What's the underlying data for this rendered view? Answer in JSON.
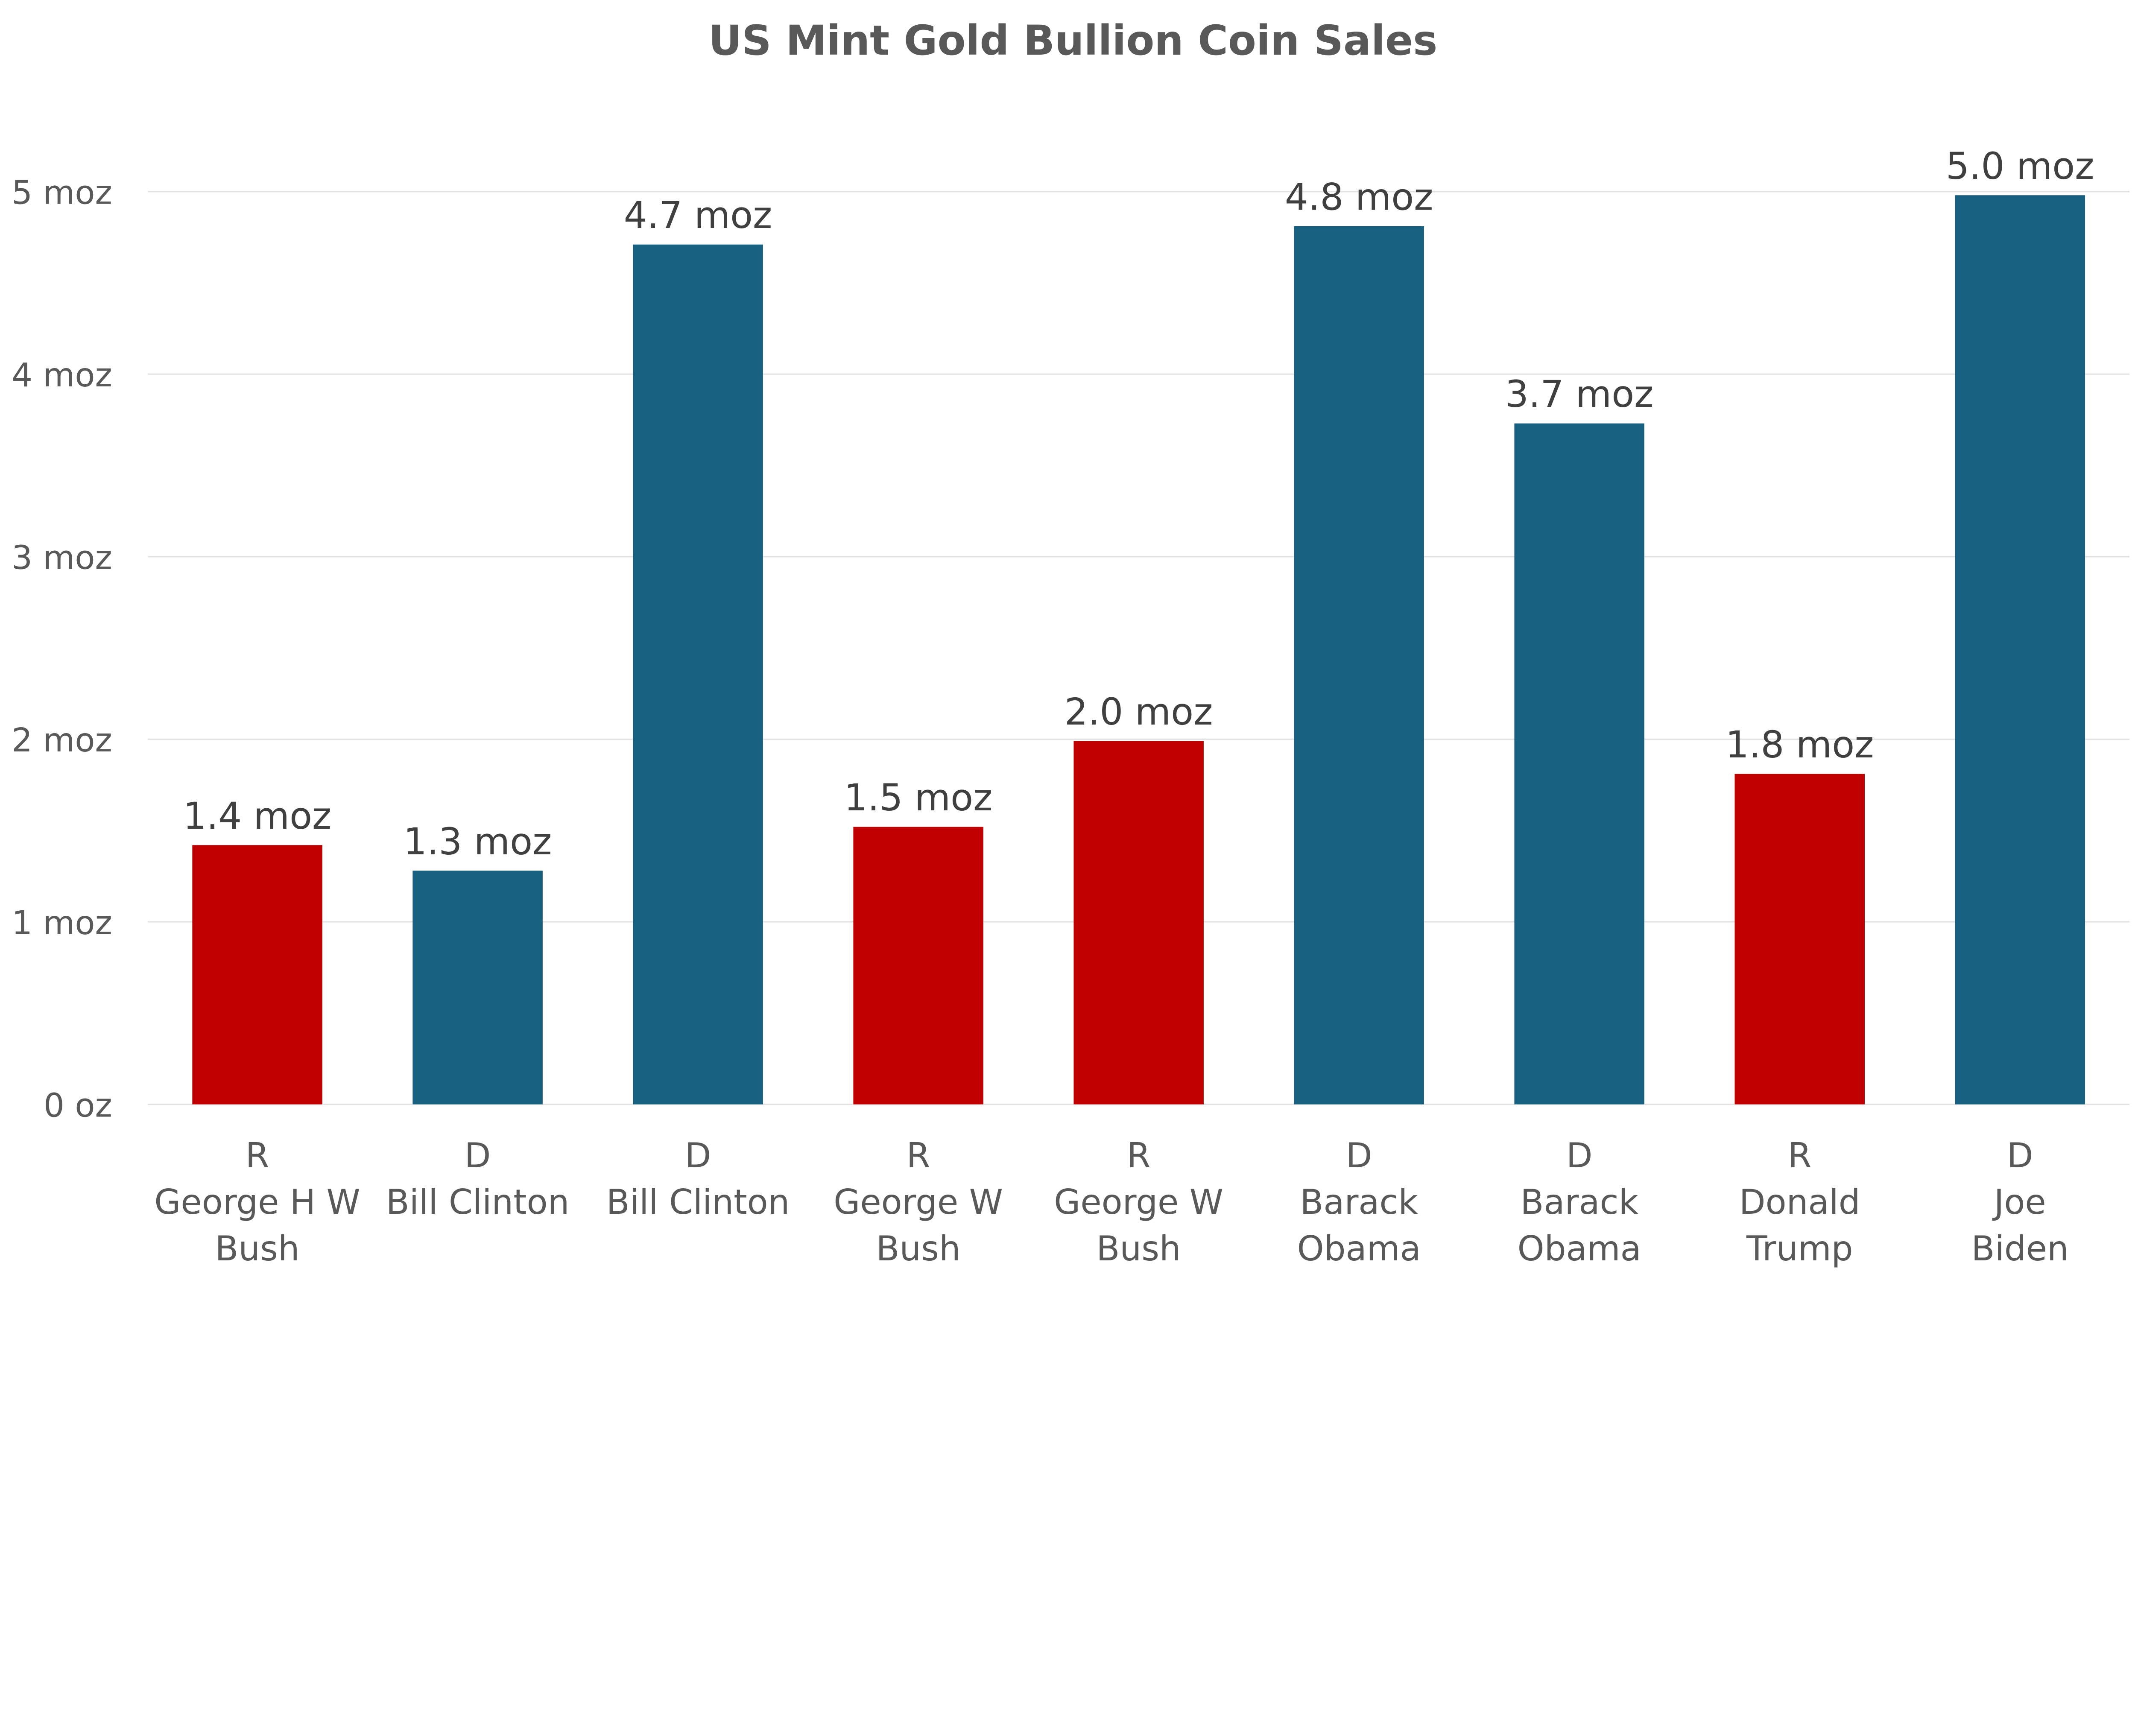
{
  "chart_data": {
    "type": "bar",
    "title": "US Mint Gold Bullion Coin Sales",
    "xlabel": "",
    "ylabel": "",
    "ylim": [
      0,
      5
    ],
    "y_ticks": [
      {
        "value": 0,
        "label": "0 oz"
      },
      {
        "value": 1,
        "label": "1 moz"
      },
      {
        "value": 2,
        "label": "2 moz"
      },
      {
        "value": 3,
        "label": "3 moz"
      },
      {
        "value": 4,
        "label": "4 moz"
      },
      {
        "value": 5,
        "label": "5 moz"
      }
    ],
    "grid": true,
    "legend": "none",
    "categories": [
      {
        "party": "R",
        "lines": [
          "George H W",
          "Bush"
        ]
      },
      {
        "party": "D",
        "lines": [
          "Bill Clinton"
        ]
      },
      {
        "party": "D",
        "lines": [
          "Bill Clinton"
        ]
      },
      {
        "party": "R",
        "lines": [
          "George W",
          "Bush"
        ]
      },
      {
        "party": "R",
        "lines": [
          "George W",
          "Bush"
        ]
      },
      {
        "party": "D",
        "lines": [
          "Barack",
          "Obama"
        ]
      },
      {
        "party": "D",
        "lines": [
          "Barack",
          "Obama"
        ]
      },
      {
        "party": "R",
        "lines": [
          "Donald",
          "Trump"
        ]
      },
      {
        "party": "D",
        "lines": [
          "Joe",
          "Biden"
        ]
      }
    ],
    "values": [
      1.42,
      1.28,
      4.71,
      1.52,
      1.99,
      4.81,
      3.73,
      1.81,
      4.98
    ],
    "data_labels": [
      "1.4 moz",
      "1.3 moz",
      "4.7 moz",
      "1.5 moz",
      "2.0 moz",
      "4.8 moz",
      "3.7 moz",
      "1.8 moz",
      "5.0 moz"
    ],
    "colors": {
      "R": "#C00000",
      "D": "#17607F"
    }
  }
}
